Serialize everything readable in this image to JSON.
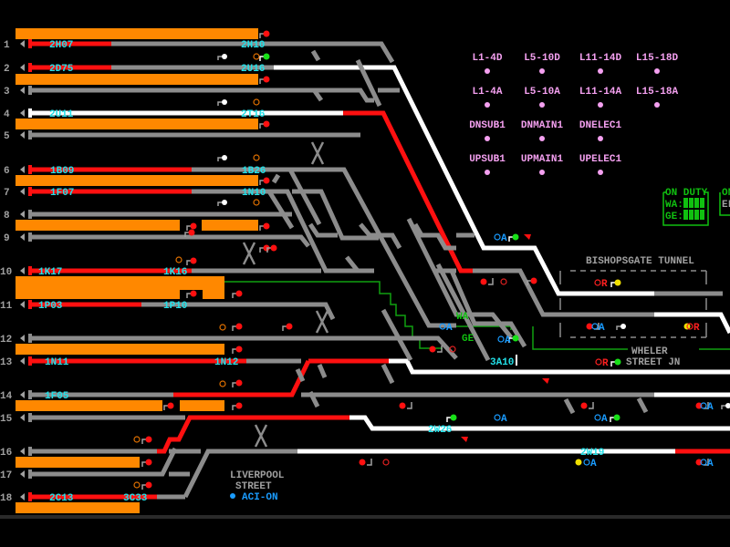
{
  "colors": {
    "background": "#000000",
    "platform": "#ff8800",
    "track_idle": "#8c8c8c",
    "track_route_set": "#ffffff",
    "track_occupied": "#ff1010",
    "train_description": "#22e0e8",
    "route_indicator": "#f4a0f0",
    "duty_panel": "#10c010"
  },
  "rows": [
    "1",
    "2",
    "3",
    "4",
    "5",
    "6",
    "7",
    "8",
    "9",
    "10",
    "11",
    "12",
    "13",
    "14",
    "15",
    "16",
    "17",
    "18"
  ],
  "train_descriptions": [
    "2H07",
    "2H10",
    "2D75",
    "2U16",
    "2U11",
    "2T16",
    "1B09",
    "1B26",
    "1F07",
    "1N10",
    "1K17",
    "1K16",
    "1P03",
    "1P10",
    "1N11",
    "1N12",
    "1F05",
    "2C13",
    "3C33",
    "3A10",
    "2W26",
    "2W19"
  ],
  "route_indicators": [
    {
      "label": "L1-4D"
    },
    {
      "label": "L5-10D"
    },
    {
      "label": "L11-14D"
    },
    {
      "label": "L15-18D"
    },
    {
      "label": "L1-4A"
    },
    {
      "label": "L5-10A"
    },
    {
      "label": "L11-14A"
    },
    {
      "label": "L15-18A"
    },
    {
      "label": "DNSUB1"
    },
    {
      "label": "DNMAIN1"
    },
    {
      "label": "DNELEC1"
    },
    {
      "label": "UPSUB1"
    },
    {
      "label": "UPMAIN1"
    },
    {
      "label": "UPELEC1"
    }
  ],
  "locations": {
    "tunnel": "BISHOPSGATE TUNNEL",
    "junction_line1": "WHELER",
    "junction_line2": "STREET JN",
    "station_line1": "LIVERPOOL",
    "station_line2": "STREET",
    "aci_status": "ACI-ON"
  },
  "zones": {
    "wa": "WA",
    "ge": "GE"
  },
  "duty_panel": {
    "title": "ON DUTY",
    "wa_label": "WA:",
    "ge_label": "GE:"
  },
  "duty_panel_2": {
    "title": "ON",
    "line": "EL"
  },
  "signal_letters": {
    "auto": "A",
    "route": "R"
  }
}
